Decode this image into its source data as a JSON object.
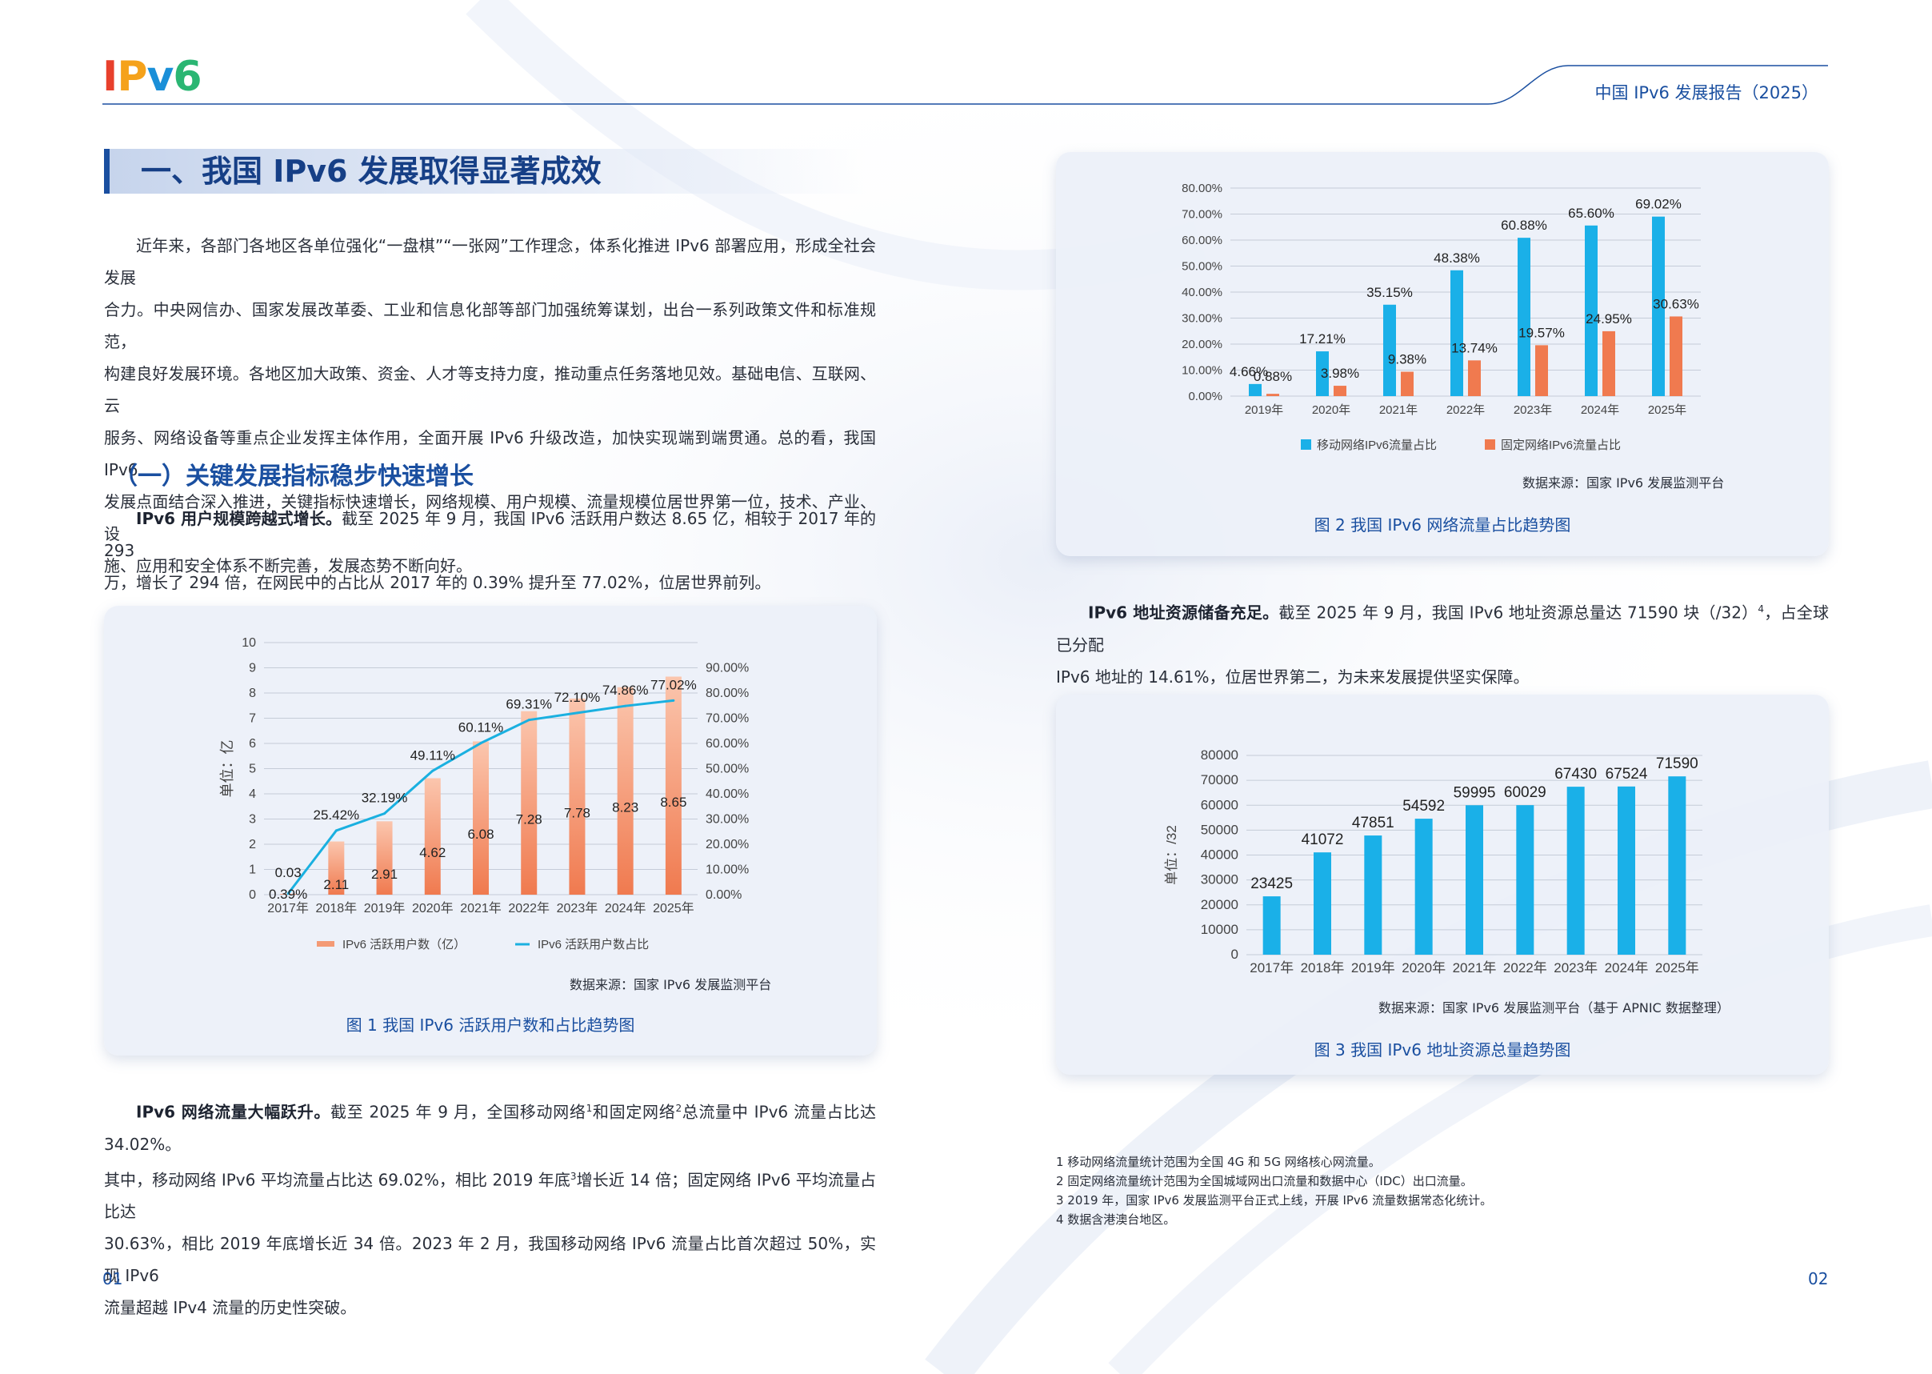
{
  "header": {
    "logo": "IPv6",
    "running_title": "中国 IPv6 发展报告（2025）"
  },
  "page_numbers": {
    "left": "01",
    "right": "02"
  },
  "section": {
    "title": "一、我国 IPv6 发展取得显著成效"
  },
  "intro_paragraph": [
    "近年来，各部门各地区各单位强化“一盘棋”“一张网”工作理念，体系化推进 IPv6 部署应用，形成全社会发展",
    "合力。中央网信办、国家发展改革委、工业和信息化部等部门加强统筹谋划，出台一系列政策文件和标准规范，",
    "构建良好发展环境。各地区加大政策、资金、人才等支持力度，推动重点任务落地见效。基础电信、互联网、云",
    "服务、网络设备等重点企业发挥主体作用，全面开展 IPv6 升级改造，加快实现端到端贯通。总的看，我国 IPv6",
    "发展点面结合深入推进，关键指标快速增长，网络规模、用户规模、流量规模位居世界第一位，技术、产业、设",
    "施、应用和安全体系不断完善，发展态势不断向好。"
  ],
  "subsection": {
    "title": "（一）关键发展指标稳步快速增长"
  },
  "user_paragraph": {
    "lead": "IPv6 用户规模跨越式增长。",
    "line1": "截至 2025 年 9 月，我国 IPv6 活跃用户数达 8.65 亿，相较于 2017 年的 293",
    "line2": "万，增长了 294 倍，在网民中的占比从 2017 年的 0.39% 提升至 77.02%，位居世界前列。"
  },
  "traffic_paragraph": {
    "lead": "IPv6 网络流量大幅跃升。",
    "line1a": "截至 2025 年 9 月，全国移动网络",
    "sup1": "1",
    "line1b": "和固定网络",
    "sup2": "2",
    "line1c": "总流量中 IPv6 流量占比达 34.02%。",
    "line2a": "其中，移动网络 IPv6 平均流量占比达 69.02%，相比 2019 年底",
    "sup3": "3",
    "line2b": "增长近 14 倍；固定网络 IPv6 平均流量占比达",
    "line3": "30.63%，相比 2019 年底增长近 34 倍。2023 年 2 月，我国移动网络 IPv6 流量占比首次超过 50%，实现 IPv6",
    "line4": "流量超越 IPv4 流量的历史性突破。"
  },
  "address_paragraph": {
    "lead": "IPv6 地址资源储备充足。",
    "line1a": "截至 2025 年 9 月，我国 IPv6 地址资源总量达 71590 块（/32）",
    "sup4": "4",
    "line1b": "，占全球已分配",
    "line2": "IPv6 地址的 14.61%，位居世界第二，为未来发展提供坚实保障。"
  },
  "footnotes": [
    "1 移动网络流量统计范围为全国 4G 和 5G 网络核心网流量。",
    "2 固定网络流量统计范围为全国城域网出口流量和数据中心（IDC）出口流量。",
    "3 2019 年，国家 IPv6 发展监测平台正式上线，开展 IPv6 流量数据常态化统计。",
    "4 数据含港澳台地区。"
  ],
  "chart_data": [
    {
      "id": "fig1",
      "type": "bar",
      "caption": "图 1 我国 IPv6 活跃用户数和占比趋势图",
      "source": "数据来源：国家 IPv6 发展监测平台",
      "categories": [
        "2017年",
        "2018年",
        "2019年",
        "2020年",
        "2021年",
        "2022年",
        "2023年",
        "2024年",
        "2025年"
      ],
      "ylabel": "单位：亿",
      "ylim": [
        0,
        10
      ],
      "yticks": [
        "0",
        "1",
        "2",
        "3",
        "4",
        "5",
        "6",
        "7",
        "8",
        "9",
        "10"
      ],
      "y2lim": [
        0,
        90
      ],
      "y2ticks": [
        "0.00%",
        "10.00%",
        "20.00%",
        "30.00%",
        "40.00%",
        "50.00%",
        "60.00%",
        "70.00%",
        "80.00%",
        "90.00%"
      ],
      "series": [
        {
          "name": "IPv6 活跃用户数（亿）",
          "kind": "bar",
          "color": "#f07a4f",
          "values": [
            0.03,
            2.11,
            2.91,
            4.62,
            6.08,
            7.28,
            7.78,
            8.23,
            8.65
          ],
          "labels": [
            "0.03",
            "2.11",
            "2.91",
            "4.62",
            "6.08",
            "7.28",
            "7.78",
            "8.23",
            "8.65"
          ]
        },
        {
          "name": "IPv6 活跃用户数占比",
          "kind": "line",
          "axis": "right",
          "color": "#1ab0e0",
          "values": [
            0.39,
            25.42,
            32.19,
            49.11,
            60.11,
            69.31,
            72.1,
            74.86,
            77.02
          ],
          "labels": [
            "0.39%",
            "25.42%",
            "32.19%",
            "49.11%",
            "60.11%",
            "69.31%",
            "72.10%",
            "74.86%",
            "77.02%"
          ]
        }
      ],
      "legend": "bottom"
    },
    {
      "id": "fig2",
      "type": "bar",
      "caption": "图 2 我国 IPv6 网络流量占比趋势图",
      "source": "数据来源：国家 IPv6 发展监测平台",
      "categories": [
        "2019年",
        "2020年",
        "2021年",
        "2022年",
        "2023年",
        "2024年",
        "2025年"
      ],
      "ylim": [
        0,
        80
      ],
      "yticks": [
        "0.00%",
        "10.00%",
        "20.00%",
        "30.00%",
        "40.00%",
        "50.00%",
        "60.00%",
        "70.00%",
        "80.00%"
      ],
      "series": [
        {
          "name": "移动网络IPv6流量占比",
          "color": "#1ab0e8",
          "values": [
            4.66,
            17.21,
            35.15,
            48.38,
            60.88,
            65.6,
            69.02
          ],
          "labels": [
            "4.66%",
            "17.21%",
            "35.15%",
            "48.38%",
            "60.88%",
            "65.60%",
            "69.02%"
          ]
        },
        {
          "name": "固定网络IPv6流量占比",
          "color": "#f07a4f",
          "values": [
            0.88,
            3.98,
            9.38,
            13.74,
            19.57,
            24.95,
            30.63
          ],
          "labels": [
            "0.88%",
            "3.98%",
            "9.38%",
            "13.74%",
            "19.57%",
            "24.95%",
            "30.63%"
          ]
        }
      ],
      "legend": "bottom"
    },
    {
      "id": "fig3",
      "type": "bar",
      "caption": "图 3 我国 IPv6 地址资源总量趋势图",
      "source": "数据来源：国家 IPv6 发展监测平台（基于 APNIC 数据整理）",
      "categories": [
        "2017年",
        "2018年",
        "2019年",
        "2020年",
        "2021年",
        "2022年",
        "2023年",
        "2024年",
        "2025年"
      ],
      "ylabel": "单位：/32",
      "ylim": [
        0,
        80000
      ],
      "yticks": [
        "0",
        "10000",
        "20000",
        "30000",
        "40000",
        "50000",
        "60000",
        "70000",
        "80000"
      ],
      "series": [
        {
          "color": "#1ab0e8",
          "values": [
            23425,
            41072,
            47851,
            54592,
            59995,
            60029,
            67430,
            67524,
            71590
          ],
          "labels": [
            "23425",
            "41072",
            "47851",
            "54592",
            "59995",
            "60029",
            "67430",
            "67524",
            "71590"
          ]
        }
      ]
    }
  ]
}
